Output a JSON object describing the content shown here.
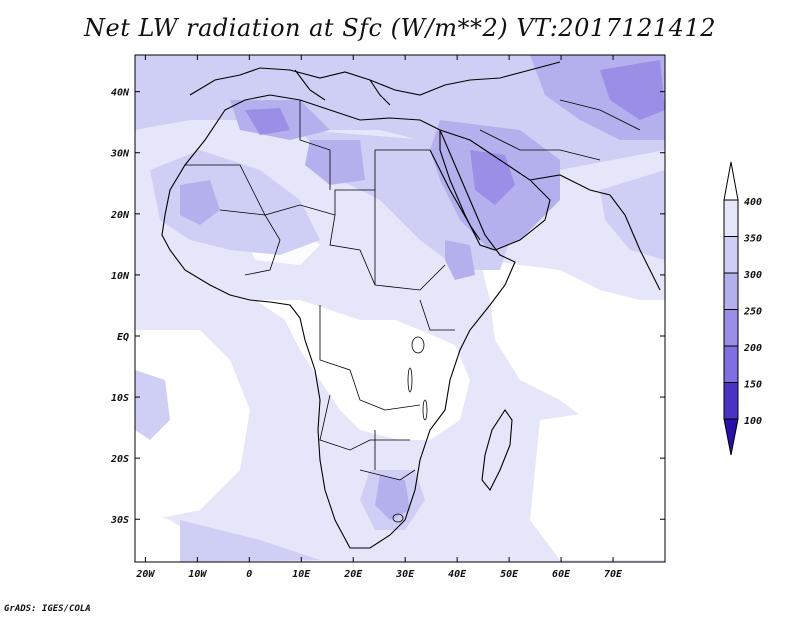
{
  "title": "Net LW radiation at Sfc (W/m**2) VT:2017121412",
  "credit": "GrADS: IGES/COLA",
  "map": {
    "lon_range": [
      -22,
      80
    ],
    "lat_range": [
      -37,
      46
    ],
    "x_ticks": [
      "20W",
      "10W",
      "0",
      "10E",
      "20E",
      "30E",
      "40E",
      "50E",
      "60E",
      "70E"
    ],
    "x_tick_values": [
      -20,
      -10,
      0,
      10,
      20,
      30,
      40,
      50,
      60,
      70
    ],
    "y_ticks": [
      "40N",
      "30N",
      "20N",
      "10N",
      "EQ",
      "10S",
      "20S",
      "30S"
    ],
    "y_tick_values": [
      40,
      30,
      20,
      10,
      0,
      -10,
      -20,
      -30
    ]
  },
  "colorbar": {
    "labels": [
      "400",
      "350",
      "300",
      "250",
      "200",
      "150",
      "100"
    ],
    "colors": [
      "#ffffff",
      "#e6e6fa",
      "#cfcff5",
      "#b4b0ee",
      "#9a8ee6",
      "#7f6fe0",
      "#4b34c4",
      "#2a10a8"
    ]
  }
}
